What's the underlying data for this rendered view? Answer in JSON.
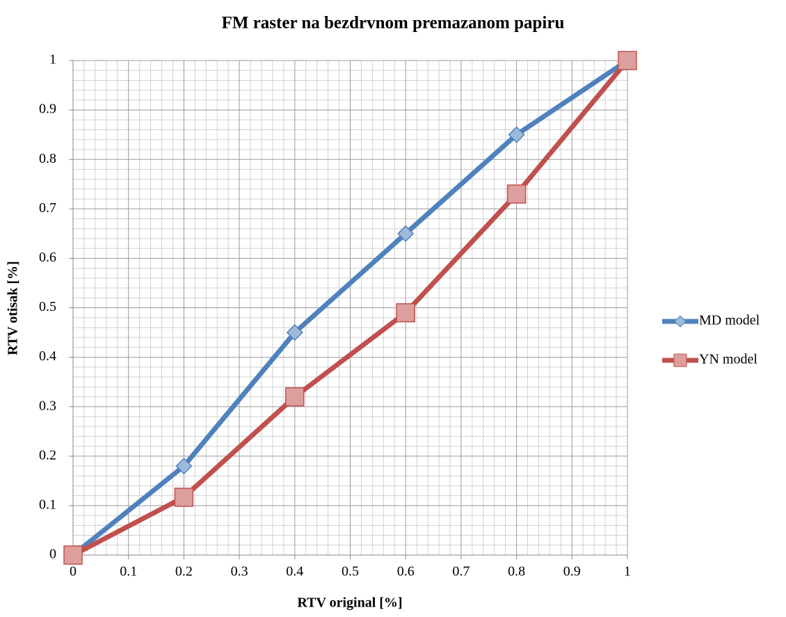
{
  "chart_data": {
    "type": "line",
    "title": "FM raster na bezdrvnom premazanom papiru",
    "x_label": "RTV original [%]",
    "y_label": "RTV otisak [%]",
    "x": [
      0,
      0.2,
      0.4,
      0.6,
      0.8,
      1
    ],
    "series": [
      {
        "name": "MD model",
        "color": "#4f81bd",
        "marker": "diamond",
        "values": [
          0,
          0.18,
          0.45,
          0.65,
          0.85,
          1
        ]
      },
      {
        "name": "YN model",
        "color": "#c0504d",
        "marker": "square",
        "values": [
          0,
          0.117,
          0.32,
          0.49,
          0.73,
          1
        ]
      }
    ],
    "xlim": [
      0,
      1
    ],
    "ylim": [
      0,
      1
    ],
    "xticks": [
      0,
      0.1,
      0.2,
      0.3,
      0.4,
      0.5,
      0.6,
      0.7,
      0.8,
      0.9,
      1
    ],
    "yticks": [
      0,
      0.1,
      0.2,
      0.3,
      0.4,
      0.5,
      0.6,
      0.7,
      0.8,
      0.9,
      1
    ],
    "grid": true,
    "minor_grid": true,
    "legend": "right"
  }
}
